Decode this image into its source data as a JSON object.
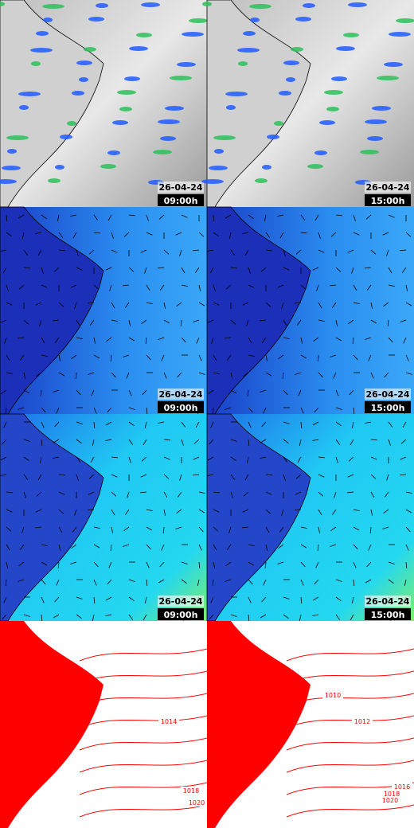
{
  "panels": [
    {
      "date": "26-04-24",
      "time": "09:00h"
    },
    {
      "date": "26-04-24",
      "time": "15:00h"
    },
    {
      "date": "26-04-24",
      "time": "09:00h"
    },
    {
      "date": "26-04-24",
      "time": "15:00h"
    },
    {
      "date": "26-04-24",
      "time": "09:00h"
    },
    {
      "date": "26-04-24",
      "time": "15:00h"
    }
  ],
  "isobars": [
    {
      "labels": [
        "1014",
        "1018",
        "1020"
      ]
    },
    {
      "labels": [
        "1010",
        "1012",
        "1016",
        "1018",
        "1020"
      ]
    }
  ]
}
